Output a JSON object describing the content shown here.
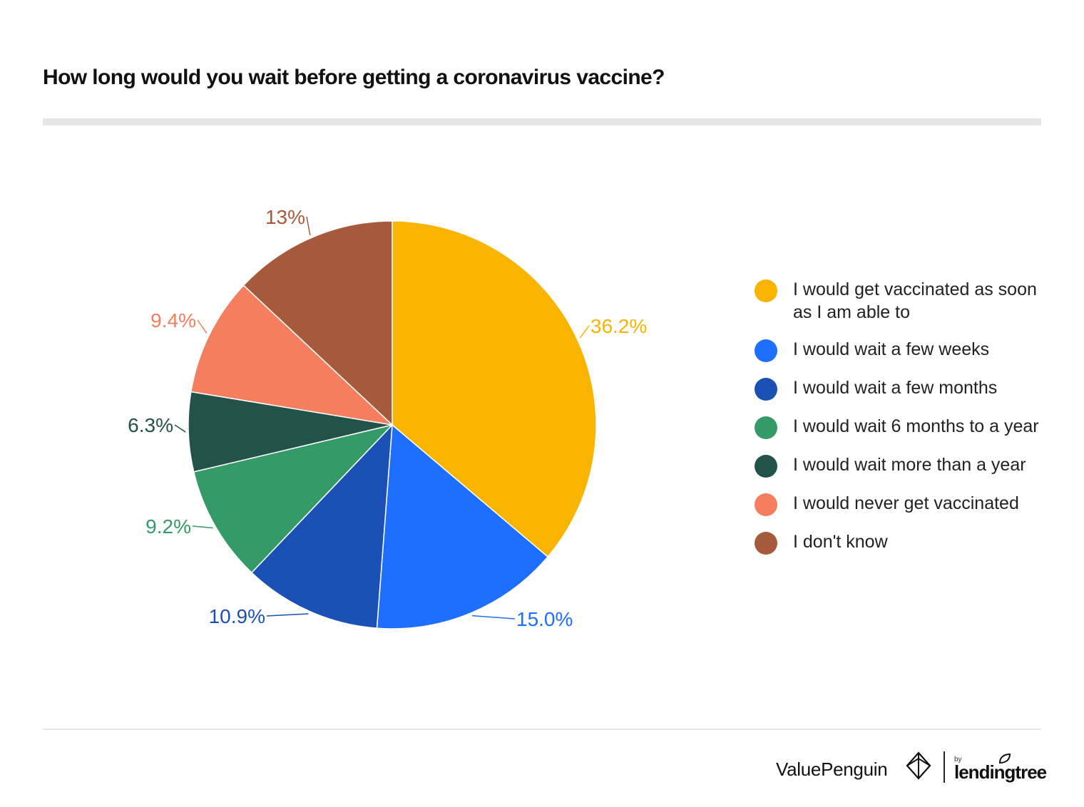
{
  "chart_data": {
    "type": "pie",
    "title": "How long would you wait before getting a coronavirus vaccine?",
    "categories": [
      "I would get vaccinated as soon as I am able to",
      "I would wait a few weeks",
      "I would wait a few months",
      "I would wait 6 months to a year",
      "I would wait more than a year",
      "I would never get vaccinated",
      "I don't know"
    ],
    "values": [
      36.2,
      15.0,
      10.9,
      9.2,
      6.3,
      9.4,
      13
    ],
    "data_labels": [
      "36.2%",
      "15.0%",
      "10.9%",
      "9.2%",
      "6.3%",
      "9.4%",
      "13%"
    ],
    "colors": [
      "#F9B400",
      "#1F6FFF",
      "#1B50B5",
      "#349A68",
      "#22524A",
      "#F47E5E",
      "#A65A3C"
    ],
    "start": "top, clockwise",
    "legend_position": "right"
  },
  "brand": {
    "name": "ValuePenguin",
    "by": "by",
    "partner": "lendingtree"
  }
}
